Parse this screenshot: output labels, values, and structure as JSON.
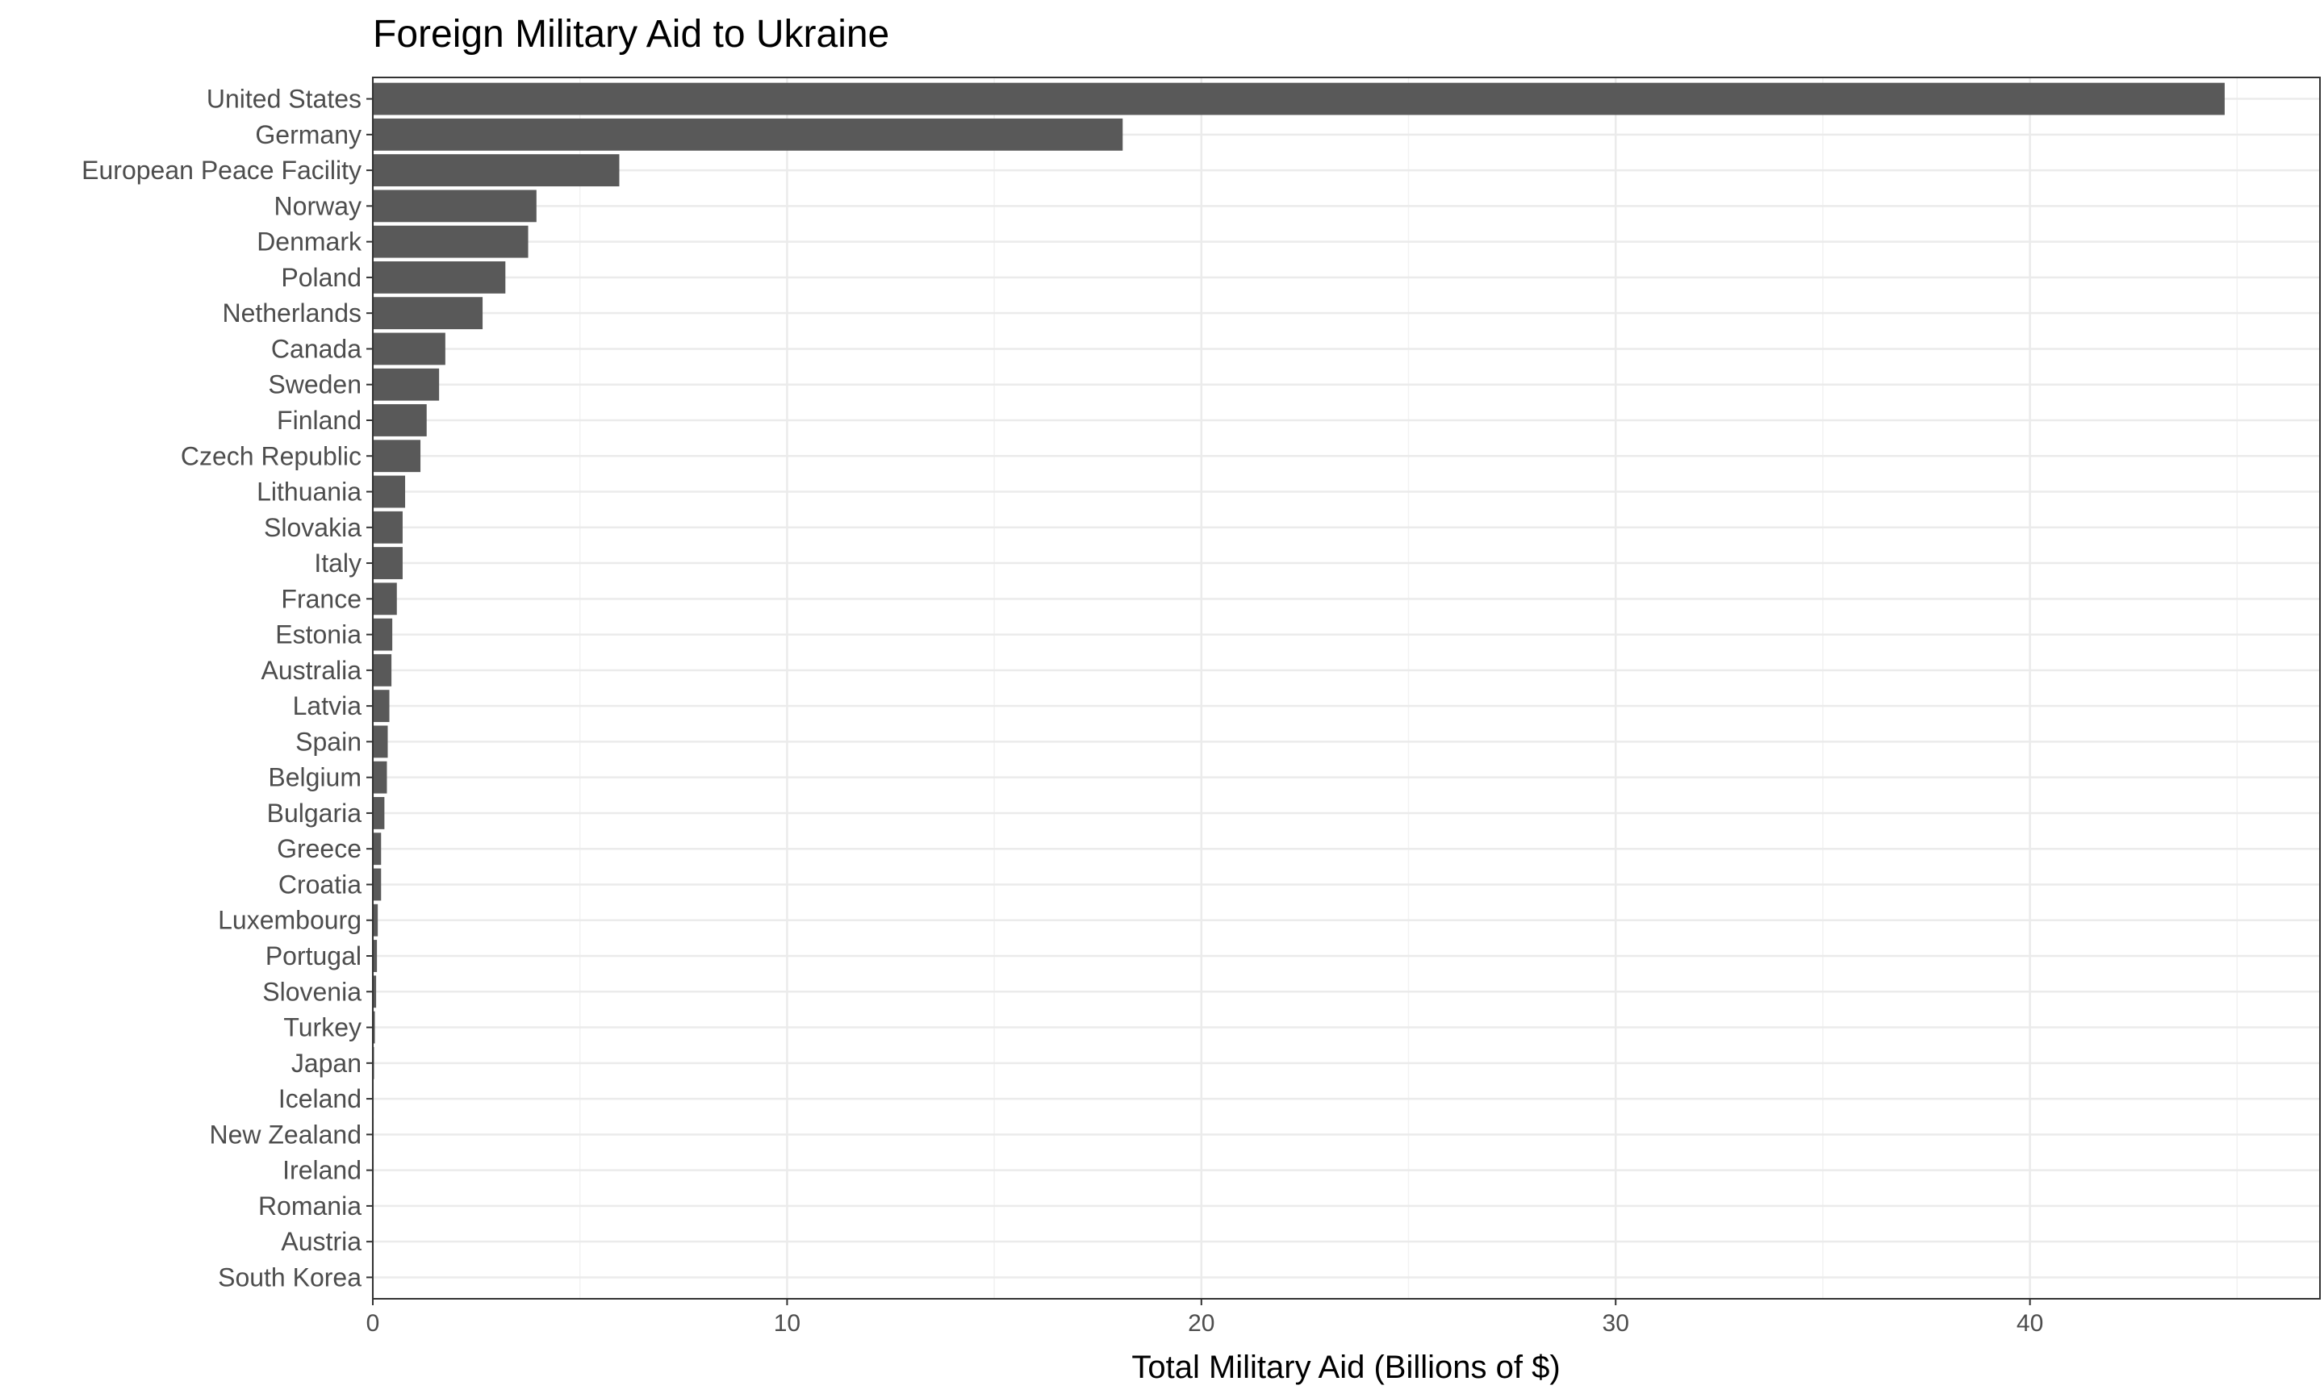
{
  "chart_data": {
    "type": "bar",
    "orientation": "horizontal",
    "title": "Foreign Military Aid to Ukraine",
    "xlabel": "Total Military Aid (Billions of $)",
    "ylabel": "",
    "xlim": [
      0,
      47
    ],
    "xticks": [
      0,
      10,
      20,
      30,
      40
    ],
    "grid": true,
    "bar_color": "#595959",
    "categories": [
      "United States",
      "Germany",
      "European Peace Facility",
      "Norway",
      "Denmark",
      "Poland",
      "Netherlands",
      "Canada",
      "Sweden",
      "Finland",
      "Czech Republic",
      "Lithuania",
      "Slovakia",
      "Italy",
      "France",
      "Estonia",
      "Australia",
      "Latvia",
      "Spain",
      "Belgium",
      "Bulgaria",
      "Greece",
      "Croatia",
      "Luxembourg",
      "Portugal",
      "Slovenia",
      "Turkey",
      "Japan",
      "Iceland",
      "New Zealand",
      "Ireland",
      "Romania",
      "Austria",
      "South Korea"
    ],
    "values": [
      44.7,
      18.1,
      5.95,
      3.95,
      3.75,
      3.2,
      2.65,
      1.75,
      1.6,
      1.3,
      1.15,
      0.78,
      0.72,
      0.72,
      0.58,
      0.47,
      0.45,
      0.4,
      0.36,
      0.34,
      0.28,
      0.2,
      0.2,
      0.12,
      0.1,
      0.08,
      0.05,
      0.03,
      0.02,
      0.02,
      0.02,
      0.01,
      0.01,
      0.005
    ]
  }
}
